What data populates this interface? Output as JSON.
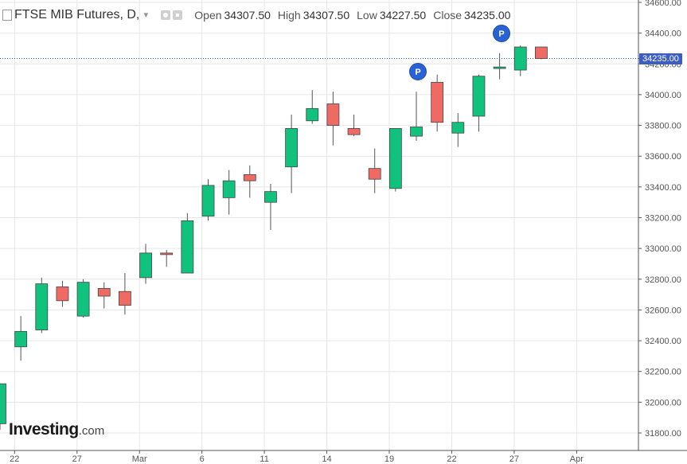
{
  "header": {
    "symbol": "FTSE MIB Futures, D,",
    "caret": "▼",
    "open_label": "Open",
    "open_value": "34307.50",
    "high_label": "High",
    "high_value": "34307.50",
    "low_label": "Low",
    "low_value": "34227.50",
    "close_label": "Close",
    "close_value": "34235.00"
  },
  "logo": {
    "main": "Investing",
    "suffix": ".com"
  },
  "last_price_tag": "34235.00",
  "pins": [
    {
      "label": "P"
    },
    {
      "label": "P"
    }
  ],
  "colors": {
    "up": "#11c27f",
    "down": "#ef6a62",
    "wick": "#555555",
    "grid": "#e6e6e6",
    "price_line": "#3c5ec4",
    "pin": "#2962d4"
  },
  "chart_data": {
    "type": "candlestick",
    "title": "FTSE MIB Futures, D,",
    "ylim": [
      31700,
      34650
    ],
    "y_ticks": [
      31800,
      32000,
      32200,
      32400,
      32600,
      32800,
      33000,
      33200,
      33400,
      33600,
      33800,
      34000,
      34200,
      34400,
      34600
    ],
    "y_tick_labels": [
      "31800.00",
      "32000.00",
      "32200.00",
      "32400.00",
      "32600.00",
      "32800.00",
      "33000.00",
      "33200.00",
      "33400.00",
      "33600.00",
      "33800.00",
      "34000.00",
      "34200.00",
      "34400.00",
      "34600.00"
    ],
    "x_tick_labels": [
      {
        "label": "22",
        "index": 0.7
      },
      {
        "label": "27",
        "index": 3.7
      },
      {
        "label": "Mar",
        "index": 6.7
      },
      {
        "label": "6",
        "index": 9.7
      },
      {
        "label": "11",
        "index": 12.7
      },
      {
        "label": "14",
        "index": 15.7
      },
      {
        "label": "19",
        "index": 18.7
      },
      {
        "label": "22",
        "index": 21.7
      },
      {
        "label": "27",
        "index": 24.7
      },
      {
        "label": "Apr",
        "index": 27.7
      }
    ],
    "grid": true,
    "last_price": 34235.0,
    "candles": [
      {
        "o": 31860,
        "h": 32120,
        "l": 31820,
        "c": 32120
      },
      {
        "o": 32360,
        "h": 32560,
        "l": 32270,
        "c": 32460
      },
      {
        "o": 32470,
        "h": 32810,
        "l": 32450,
        "c": 32770
      },
      {
        "o": 32750,
        "h": 32790,
        "l": 32620,
        "c": 32660
      },
      {
        "o": 32560,
        "h": 32800,
        "l": 32550,
        "c": 32780
      },
      {
        "o": 32740,
        "h": 32780,
        "l": 32610,
        "c": 32690
      },
      {
        "o": 32720,
        "h": 32840,
        "l": 32570,
        "c": 32630
      },
      {
        "o": 32810,
        "h": 33030,
        "l": 32770,
        "c": 32970
      },
      {
        "o": 32970,
        "h": 32990,
        "l": 32880,
        "c": 32960
      },
      {
        "o": 32840,
        "h": 33230,
        "l": 32840,
        "c": 33180
      },
      {
        "o": 33210,
        "h": 33450,
        "l": 33180,
        "c": 33410
      },
      {
        "o": 33330,
        "h": 33510,
        "l": 33220,
        "c": 33440
      },
      {
        "o": 33480,
        "h": 33540,
        "l": 33330,
        "c": 33440
      },
      {
        "o": 33300,
        "h": 33420,
        "l": 33120,
        "c": 33370
      },
      {
        "o": 33530,
        "h": 33870,
        "l": 33360,
        "c": 33780
      },
      {
        "o": 33830,
        "h": 34030,
        "l": 33810,
        "c": 33910
      },
      {
        "o": 33940,
        "h": 34020,
        "l": 33670,
        "c": 33800
      },
      {
        "o": 33780,
        "h": 33870,
        "l": 33730,
        "c": 33740
      },
      {
        "o": 33520,
        "h": 33650,
        "l": 33360,
        "c": 33450
      },
      {
        "o": 33390,
        "h": 33780,
        "l": 33370,
        "c": 33780
      },
      {
        "o": 33730,
        "h": 34020,
        "l": 33700,
        "c": 33790
      },
      {
        "o": 34080,
        "h": 34130,
        "l": 33760,
        "c": 33820
      },
      {
        "o": 33750,
        "h": 33880,
        "l": 33660,
        "c": 33820
      },
      {
        "o": 33860,
        "h": 34130,
        "l": 33760,
        "c": 34120
      },
      {
        "o": 34170,
        "h": 34270,
        "l": 34100,
        "c": 34180
      },
      {
        "o": 34160,
        "h": 34320,
        "l": 34120,
        "c": 34310
      },
      {
        "o": 34310,
        "h": 34310,
        "l": 34230,
        "c": 34235
      }
    ]
  }
}
